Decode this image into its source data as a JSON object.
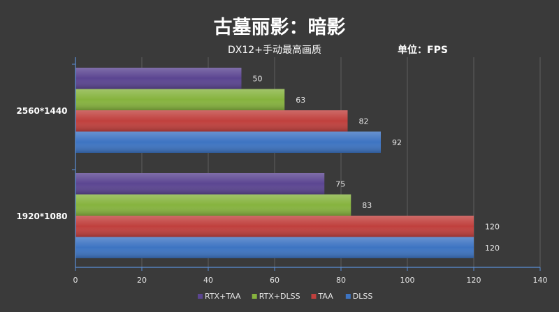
{
  "chart_data": {
    "type": "bar",
    "orientation": "horizontal",
    "title": "古墓丽影：暗影",
    "subtitle": "DX12+手动最高画质",
    "unit_label": "单位：FPS",
    "categories": [
      "2560*1440",
      "1920*1080"
    ],
    "series": [
      {
        "name": "RTX+TAA",
        "color": "#5b4591",
        "values": [
          50,
          75
        ]
      },
      {
        "name": "RTX+DLSS",
        "color": "#86b33e",
        "values": [
          63,
          83
        ]
      },
      {
        "name": "TAA",
        "color": "#c0403d",
        "values": [
          82,
          120
        ]
      },
      {
        "name": "DLSS",
        "color": "#3d74c2",
        "values": [
          92,
          120
        ]
      }
    ],
    "xlim": [
      0,
      140
    ],
    "xticks": [
      0,
      20,
      40,
      60,
      80,
      100,
      120,
      140
    ],
    "grid": true,
    "legend": "bottom"
  }
}
